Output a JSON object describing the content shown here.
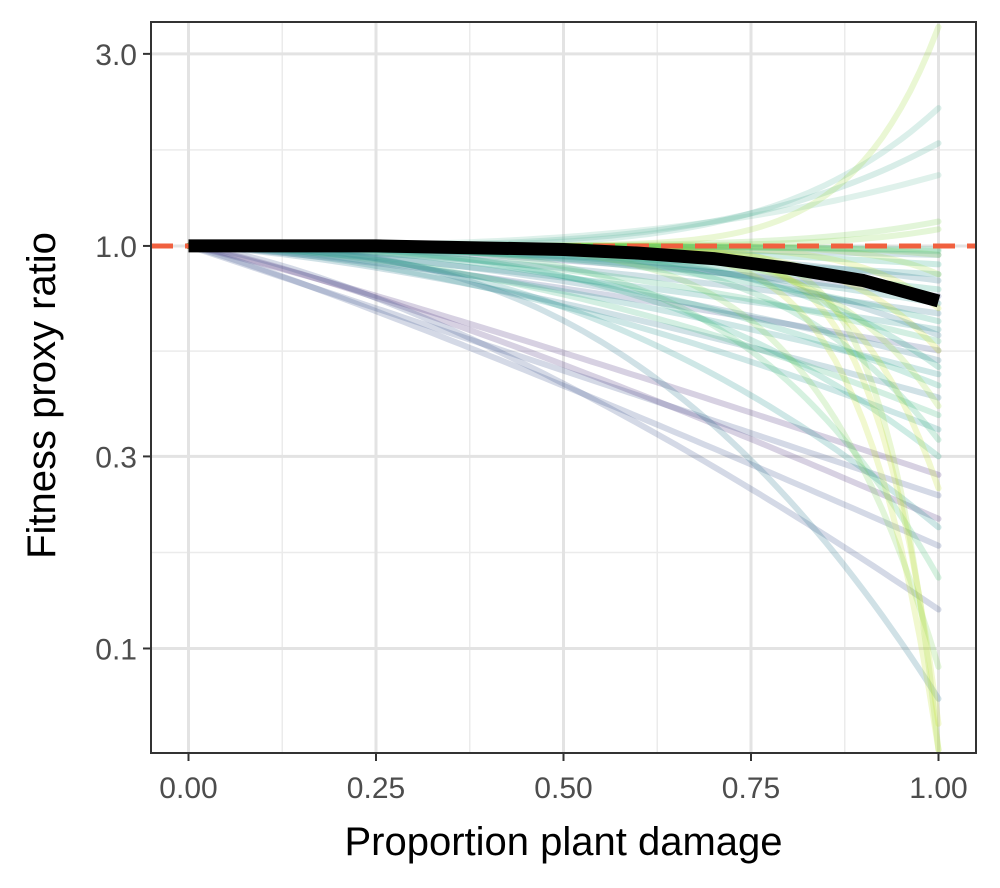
{
  "chart_data": {
    "type": "line",
    "title": "",
    "xlabel": "Proportion plant damage",
    "ylabel": "Fitness proxy ratio",
    "x_scale": "linear",
    "y_scale": "log10",
    "xlim": [
      -0.05,
      1.05
    ],
    "ylim": [
      0.055,
      3.6
    ],
    "x_ticks": [
      0.0,
      0.25,
      0.5,
      0.75,
      1.0
    ],
    "x_tick_labels": [
      "0.00",
      "0.25",
      "0.50",
      "0.75",
      "1.00"
    ],
    "y_ticks": [
      0.1,
      0.3,
      1.0,
      3.0
    ],
    "y_tick_labels": [
      "0.1",
      "0.3",
      "1.0",
      "3.0"
    ],
    "grid": true,
    "reference_line": {
      "y": 1.0,
      "style": "dashed",
      "color": "#f0603f"
    },
    "mean_curve": {
      "color": "#000000",
      "x": [
        0.0,
        0.25,
        0.5,
        0.6,
        0.7,
        0.8,
        0.9,
        1.0
      ],
      "y": [
        1.0,
        1.0,
        0.98,
        0.96,
        0.93,
        0.88,
        0.82,
        0.73
      ]
    },
    "individual_curves": [
      {
        "x0": 0.0,
        "end_y": 2.2,
        "bend": 5.0,
        "color": "#5cb8a0"
      },
      {
        "x0": 0.0,
        "end_y": 1.8,
        "bend": 4.0,
        "color": "#4fae98"
      },
      {
        "x0": 0.0,
        "end_y": 1.5,
        "bend": 3.0,
        "color": "#6cc1a4"
      },
      {
        "x0": 0.0,
        "end_y": 0.95,
        "bend": 2.0,
        "color": "#2a788e"
      },
      {
        "x0": 0.0,
        "end_y": 0.9,
        "bend": 2.5,
        "color": "#22a884"
      },
      {
        "x0": 0.0,
        "end_y": 0.85,
        "bend": 1.5,
        "color": "#21918c"
      },
      {
        "x0": 0.0,
        "end_y": 0.82,
        "bend": 3.0,
        "color": "#2a788e"
      },
      {
        "x0": 0.0,
        "end_y": 0.78,
        "bend": 2.0,
        "color": "#22a884"
      },
      {
        "x0": 0.0,
        "end_y": 0.75,
        "bend": 1.8,
        "color": "#3b528b"
      },
      {
        "x0": 0.0,
        "end_y": 0.72,
        "bend": 2.2,
        "color": "#21918c"
      },
      {
        "x0": 0.0,
        "end_y": 0.68,
        "bend": 1.6,
        "color": "#2a788e"
      },
      {
        "x0": 0.0,
        "end_y": 0.65,
        "bend": 2.5,
        "color": "#22a884"
      },
      {
        "x0": 0.0,
        "end_y": 0.62,
        "bend": 1.4,
        "color": "#21918c"
      },
      {
        "x0": 0.0,
        "end_y": 0.58,
        "bend": 2.0,
        "color": "#35b779"
      },
      {
        "x0": 0.0,
        "end_y": 0.55,
        "bend": 1.3,
        "color": "#3b528b"
      },
      {
        "x0": 0.0,
        "end_y": 0.52,
        "bend": 1.7,
        "color": "#2a788e"
      },
      {
        "x0": 0.0,
        "end_y": 0.48,
        "bend": 1.5,
        "color": "#21918c"
      },
      {
        "x0": 0.0,
        "end_y": 0.45,
        "bend": 2.2,
        "color": "#22a884"
      },
      {
        "x0": 0.0,
        "end_y": 0.42,
        "bend": 1.4,
        "color": "#2a788e"
      },
      {
        "x0": 0.0,
        "end_y": 0.38,
        "bend": 1.8,
        "color": "#35b779"
      },
      {
        "x0": 0.0,
        "end_y": 0.35,
        "bend": 1.6,
        "color": "#21918c"
      },
      {
        "x0": 0.0,
        "end_y": 0.27,
        "bend": 1.1,
        "color": "#472d7b"
      },
      {
        "x0": 0.0,
        "end_y": 0.24,
        "bend": 1.0,
        "color": "#3b528b"
      },
      {
        "x0": 0.0,
        "end_y": 0.21,
        "bend": 1.2,
        "color": "#472d7b"
      },
      {
        "x0": 0.0,
        "end_y": 0.18,
        "bend": 1.1,
        "color": "#3b528b"
      },
      {
        "x0": 0.0,
        "end_y": 0.125,
        "bend": 1.4,
        "color": "#3b528b"
      },
      {
        "x0": 0.0,
        "end_y": 0.075,
        "bend": 2.6,
        "color": "#2a788e"
      },
      {
        "x0": 0.0,
        "end_y": 0.2,
        "bend": 2.2,
        "color": "#21918c"
      },
      {
        "x0": 0.0,
        "end_y": 0.3,
        "bend": 2.8,
        "color": "#22a884"
      },
      {
        "x0": 0.0,
        "end_y": 0.15,
        "bend": 4.0,
        "color": "#44bf70"
      },
      {
        "x0": 0.0,
        "end_y": 0.09,
        "bend": 6.0,
        "color": "#7ad151"
      },
      {
        "x0": 0.0,
        "end_y": 0.056,
        "bend": 10.0,
        "color": "#bddf26"
      },
      {
        "x0": 0.0,
        "end_y": 0.056,
        "bend": 14.0,
        "color": "#a0da39"
      },
      {
        "x0": 0.0,
        "end_y": 0.065,
        "bend": 12.0,
        "color": "#c2df23"
      },
      {
        "x0": 0.0,
        "end_y": 0.25,
        "bend": 9.0,
        "color": "#bddf26"
      },
      {
        "x0": 0.0,
        "end_y": 0.4,
        "bend": 7.0,
        "color": "#a0da39"
      },
      {
        "x0": 0.0,
        "end_y": 0.55,
        "bend": 8.0,
        "color": "#d0e11c"
      },
      {
        "x0": 0.0,
        "end_y": 0.7,
        "bend": 10.0,
        "color": "#bddf26"
      },
      {
        "x0": 0.0,
        "end_y": 0.85,
        "bend": 12.0,
        "color": "#a0da39"
      },
      {
        "x0": 0.0,
        "end_y": 0.95,
        "bend": 9.0,
        "color": "#86d549"
      },
      {
        "x0": 0.0,
        "end_y": 1.1,
        "bend": 8.0,
        "color": "#86d549"
      },
      {
        "x0": 0.0,
        "end_y": 1.15,
        "bend": 6.0,
        "color": "#7ad151"
      },
      {
        "x0": 0.0,
        "end_y": 3.5,
        "bend": 9.0,
        "color": "#a0da39"
      },
      {
        "x0": 0.0,
        "end_y": 0.98,
        "bend": 3.0,
        "color": "#35b779"
      },
      {
        "x0": 0.0,
        "end_y": 0.97,
        "bend": 4.0,
        "color": "#44bf70"
      },
      {
        "x0": 0.0,
        "end_y": 0.6,
        "bend": 3.5,
        "color": "#2a788e"
      },
      {
        "x0": 0.0,
        "end_y": 0.5,
        "bend": 4.5,
        "color": "#22a884"
      },
      {
        "x0": 0.0,
        "end_y": 0.33,
        "bend": 5.0,
        "color": "#35b779"
      }
    ]
  }
}
